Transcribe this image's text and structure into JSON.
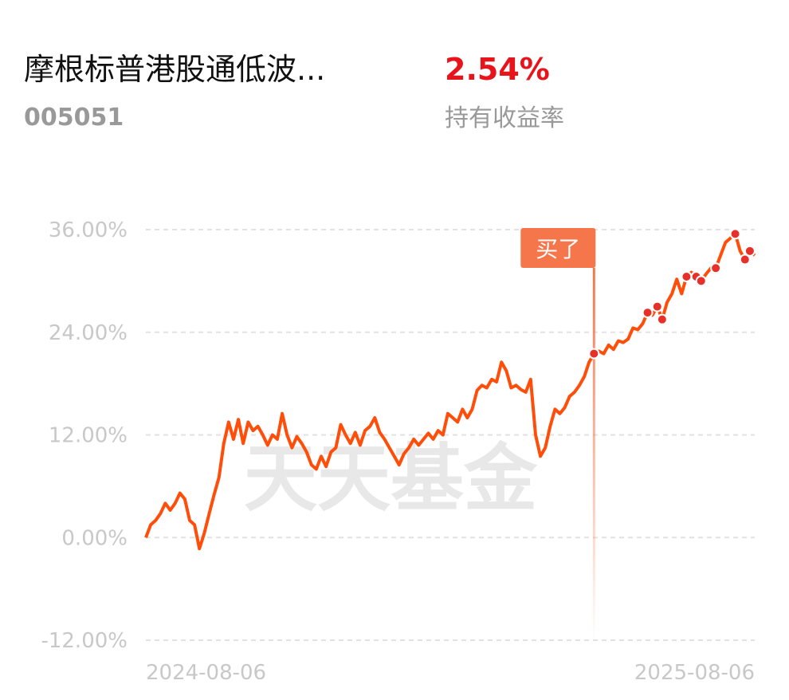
{
  "header": {
    "title": "摩根标普港股通低波...",
    "code": "005051",
    "holding_return": "2.54%",
    "holding_return_label": "持有收益率"
  },
  "chart_data": {
    "type": "line",
    "watermark": "天天基金",
    "categories": [
      "2024-08-06",
      null,
      null,
      null,
      null,
      null,
      null,
      null,
      null,
      null,
      null,
      null,
      null,
      null,
      null,
      null,
      null,
      null,
      null,
      null,
      null,
      null,
      null,
      null,
      null,
      null,
      null,
      null,
      null,
      null,
      null,
      null,
      null,
      null,
      null,
      null,
      null,
      null,
      null,
      null,
      null,
      null,
      null,
      null,
      null,
      null,
      null,
      null,
      null,
      null,
      null,
      null,
      null,
      null,
      null,
      null,
      null,
      null,
      null,
      null,
      null,
      null,
      null,
      null,
      null,
      null,
      null,
      null,
      null,
      null,
      null,
      null,
      null,
      null,
      null,
      null,
      null,
      null,
      null,
      null,
      null,
      null,
      null,
      null,
      null,
      null,
      null,
      null,
      null,
      null,
      null,
      null,
      null,
      null,
      null,
      null,
      null,
      null,
      null,
      null,
      null,
      null,
      null,
      null,
      null,
      null,
      null,
      null,
      null,
      null,
      null,
      null,
      null,
      null,
      null,
      null,
      null,
      null,
      null,
      null,
      null,
      null,
      null,
      null,
      null,
      "2025-08-06"
    ],
    "series": [
      {
        "name": "持有收益率",
        "color": "#ff4d0a",
        "values": [
          0,
          1.5,
          2,
          2.8,
          4,
          3.2,
          4,
          5.2,
          4.5,
          2,
          1.5,
          -1.3,
          0.5,
          2.8,
          5,
          7,
          11,
          13.5,
          11.5,
          13.8,
          11,
          13.5,
          12.5,
          13,
          12,
          10.8,
          12,
          11.5,
          14.5,
          12,
          10.5,
          11.8,
          11,
          10,
          8.5,
          8,
          9.5,
          8.3,
          10,
          10.5,
          13.2,
          12,
          11,
          12.3,
          10.8,
          12.5,
          13,
          14,
          12.3,
          11.5,
          10.5,
          9.5,
          8.5,
          9.8,
          10.5,
          11.5,
          10.8,
          11.5,
          12.2,
          11.5,
          12.5,
          12,
          14.5,
          14,
          13.5,
          15,
          14,
          15,
          17.2,
          17.8,
          17.5,
          18.5,
          18.2,
          20.5,
          19.5,
          17.5,
          17.8,
          17.3,
          17,
          18.5,
          12,
          9.5,
          10.5,
          13,
          15,
          14.5,
          15.2,
          16.5,
          17,
          17.8,
          18.8,
          20.5,
          21.5,
          21.8,
          21.5,
          22.5,
          22,
          23,
          22.8,
          23.2,
          24.5,
          24.3,
          25,
          26.3,
          26,
          27,
          25.5,
          27.5,
          28.5,
          30.2,
          28.5,
          30.5,
          31,
          30.5,
          30,
          30.8,
          31.5,
          31.5,
          33,
          34.5,
          35,
          35.5,
          33.5,
          32.5,
          33.5,
          33
        ]
      }
    ],
    "buy_marker": {
      "label": "买了",
      "index": 92
    },
    "dots": [
      92,
      103,
      105,
      106,
      111,
      113,
      114,
      117,
      121,
      123,
      124
    ],
    "ylim": [
      -12,
      36
    ],
    "yticks": [
      {
        "value": -12,
        "label": "-12.00%"
      },
      {
        "value": 0,
        "label": "0.00%"
      },
      {
        "value": 12,
        "label": "12.00%"
      },
      {
        "value": 24,
        "label": "24.00%"
      },
      {
        "value": 36,
        "label": "36.00%"
      }
    ],
    "grid": true
  }
}
